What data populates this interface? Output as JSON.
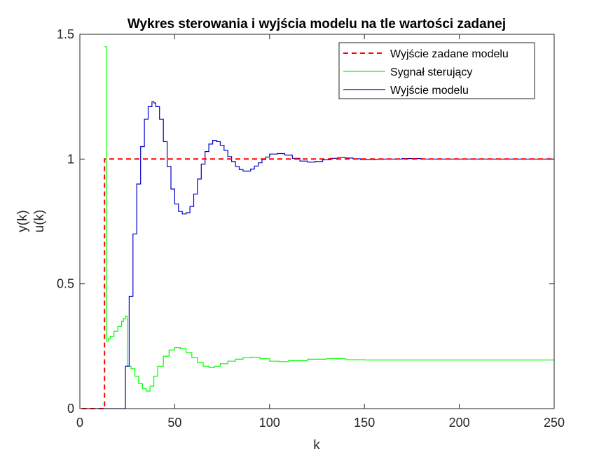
{
  "chart_data": {
    "type": "line",
    "title": "Wykres sterowania i wyjścia modelu na tle wartości zadanej",
    "xlabel": "k",
    "ylabel_lines": [
      "y(k)",
      "u(k)"
    ],
    "xlim": [
      0,
      250
    ],
    "ylim": [
      0,
      1.5
    ],
    "xticks": [
      0,
      50,
      100,
      150,
      200,
      250
    ],
    "yticks": [
      0,
      0.5,
      1,
      1.5
    ],
    "xtick_labels": [
      "0",
      "50",
      "100",
      "150",
      "200",
      "250"
    ],
    "ytick_labels": [
      "0",
      "0.5",
      "1",
      "1.5"
    ],
    "legend_position": "top-right",
    "series": [
      {
        "name": "Wyjście zadane modelu",
        "color": "#ff0000",
        "style": "dashed",
        "step": true,
        "x": [
          1,
          13,
          13,
          250
        ],
        "y": [
          0,
          0,
          1,
          1
        ]
      },
      {
        "name": "Sygnał sterujący",
        "color": "#00ff00",
        "style": "solid",
        "step": true,
        "x": [
          13,
          14,
          15,
          16,
          18,
          20,
          22,
          23,
          24,
          25,
          27,
          29,
          31,
          33,
          35,
          37,
          39,
          41,
          44,
          47,
          50,
          53,
          56,
          59,
          62,
          65,
          68,
          71,
          74,
          78,
          82,
          86,
          90,
          95,
          100,
          105,
          110,
          120,
          130,
          140,
          150,
          175,
          200,
          250
        ],
        "y": [
          1.45,
          0.27,
          0.28,
          0.29,
          0.31,
          0.33,
          0.35,
          0.36,
          0.37,
          0.17,
          0.16,
          0.13,
          0.1,
          0.08,
          0.07,
          0.09,
          0.13,
          0.17,
          0.21,
          0.235,
          0.245,
          0.24,
          0.225,
          0.205,
          0.185,
          0.17,
          0.165,
          0.17,
          0.18,
          0.19,
          0.198,
          0.204,
          0.206,
          0.2,
          0.19,
          0.188,
          0.192,
          0.198,
          0.2,
          0.196,
          0.195,
          0.195,
          0.195,
          0.195
        ]
      },
      {
        "name": "Wyjście modelu",
        "color": "#0000cc",
        "style": "solid",
        "step": true,
        "x": [
          1,
          24,
          24,
          26,
          28,
          30,
          32,
          34,
          36,
          38,
          39,
          40,
          42,
          44,
          46,
          48,
          50,
          52,
          54,
          56,
          58,
          60,
          62,
          64,
          66,
          68,
          70,
          72,
          74,
          76,
          78,
          80,
          82,
          84,
          86,
          88,
          90,
          92,
          94,
          96,
          98,
          100,
          104,
          108,
          112,
          116,
          120,
          124,
          128,
          132,
          136,
          140,
          144,
          148,
          152,
          156,
          160,
          170,
          180,
          186,
          190,
          200,
          250
        ],
        "y": [
          0,
          0,
          0.17,
          0.45,
          0.7,
          0.9,
          1.05,
          1.16,
          1.21,
          1.23,
          1.225,
          1.21,
          1.16,
          1.07,
          0.97,
          0.88,
          0.82,
          0.79,
          0.78,
          0.785,
          0.81,
          0.86,
          0.92,
          0.98,
          1.03,
          1.06,
          1.075,
          1.07,
          1.055,
          1.035,
          1.01,
          0.99,
          0.97,
          0.958,
          0.952,
          0.952,
          0.96,
          0.972,
          0.985,
          0.998,
          1.008,
          1.02,
          1.022,
          1.016,
          1.003,
          0.992,
          0.988,
          0.99,
          0.997,
          1.003,
          1.006,
          1.004,
          1.001,
          0.998,
          0.998,
          0.999,
          1.0,
          1.002,
          1.0,
          1.0,
          1.0,
          1.0,
          1.0
        ]
      }
    ]
  }
}
